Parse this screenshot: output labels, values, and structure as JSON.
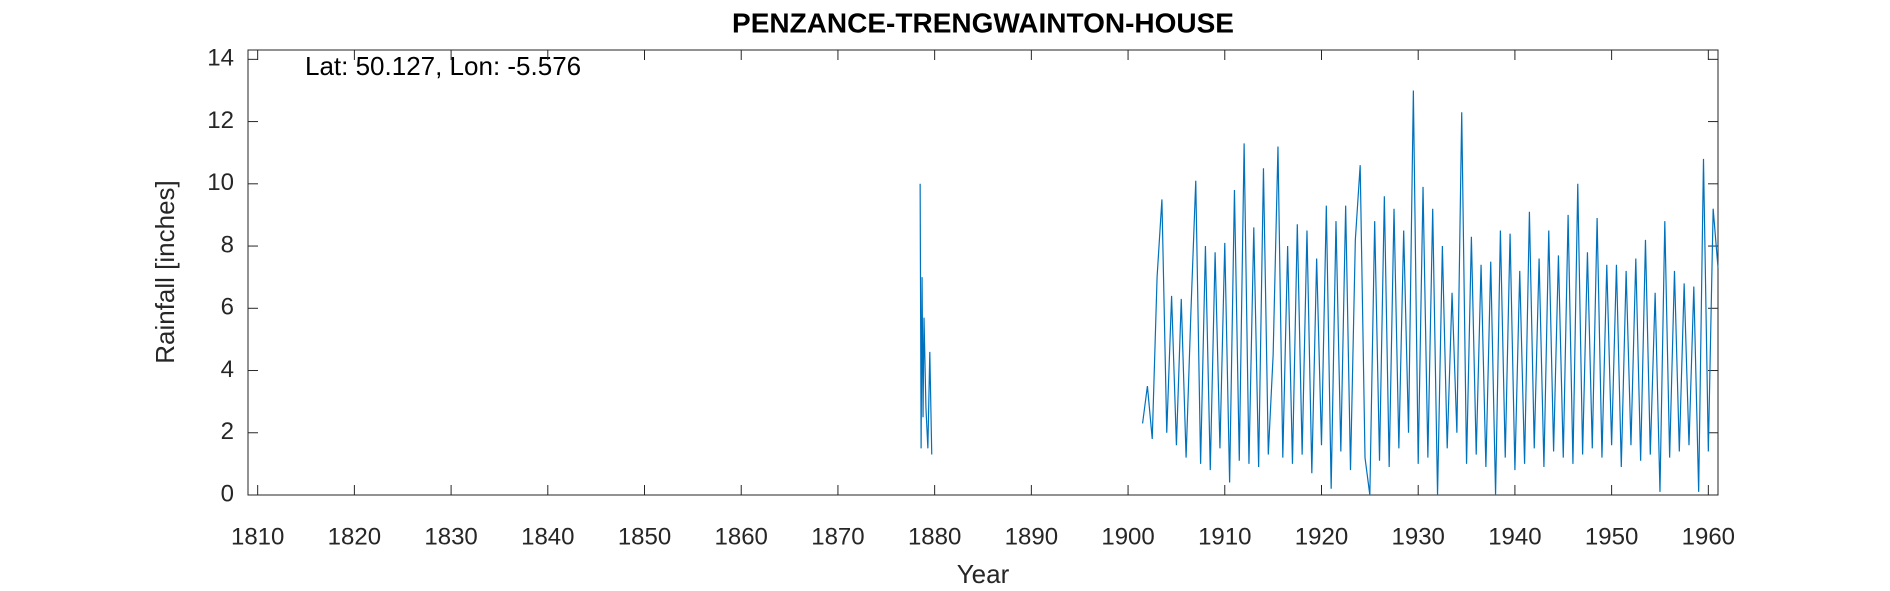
{
  "chart_data": {
    "type": "line",
    "title": "PENZANCE-TRENGWAINTON-HOUSE",
    "annotation": "Lat: 50.127, Lon: -5.576",
    "x_label": "Year",
    "y_label": "Rainfall [inches]",
    "xlim": [
      1809,
      1961
    ],
    "ylim": [
      0,
      14.3
    ],
    "xticks": [
      1810,
      1820,
      1830,
      1840,
      1850,
      1860,
      1870,
      1880,
      1890,
      1900,
      1910,
      1920,
      1930,
      1940,
      1950,
      1960
    ],
    "yticks": [
      0,
      2,
      4,
      6,
      8,
      10,
      12,
      14
    ],
    "x": [
      1878.5,
      1878.6,
      1878.7,
      1878.8,
      1878.9,
      1879.1,
      1879.3,
      1879.5,
      1879.7,
      1890,
      1901.5,
      1902,
      1902.5,
      1903,
      1903.5,
      1904,
      1904.5,
      1905,
      1905.5,
      1906,
      1906.5,
      1907,
      1907.5,
      1908,
      1908.5,
      1909,
      1909.5,
      1910,
      1910.5,
      1911,
      1911.5,
      1912,
      1912.5,
      1913,
      1913.5,
      1914,
      1914.5,
      1915,
      1915.5,
      1916,
      1916.5,
      1917,
      1917.5,
      1918,
      1918.5,
      1919,
      1919.5,
      1920,
      1920.5,
      1921,
      1921.5,
      1922,
      1922.5,
      1923,
      1923.5,
      1924,
      1924.5,
      1925,
      1925.5,
      1926,
      1926.5,
      1927,
      1927.5,
      1928,
      1928.5,
      1929,
      1929.5,
      1930,
      1930.5,
      1931,
      1931.5,
      1932,
      1932.5,
      1933,
      1933.5,
      1934,
      1934.5,
      1935,
      1935.5,
      1936,
      1936.5,
      1937,
      1937.5,
      1938,
      1938.5,
      1939,
      1939.5,
      1940,
      1940.5,
      1941,
      1941.5,
      1942,
      1942.5,
      1943,
      1943.5,
      1944,
      1944.5,
      1945,
      1945.5,
      1946,
      1946.5,
      1947,
      1947.5,
      1948,
      1948.5,
      1949,
      1949.5,
      1950,
      1950.5,
      1951,
      1951.5,
      1952,
      1952.5,
      1953,
      1953.5,
      1954,
      1954.5,
      1955,
      1955.5,
      1956,
      1956.5,
      1957,
      1957.5,
      1958,
      1958.5,
      1959,
      1959.5,
      1960,
      1960.5,
      1961
    ],
    "series": [
      {
        "color": "#0072bd",
        "values": [
          10,
          1.5,
          7,
          2.5,
          5.7,
          2.8,
          1.5,
          4.6,
          1.3,
          null,
          2.3,
          3.5,
          1.8,
          7,
          9.5,
          2,
          6.4,
          1.6,
          6.3,
          1.2,
          5.9,
          10.1,
          1,
          8,
          0.8,
          7.8,
          1.5,
          8.1,
          0.4,
          9.8,
          1.1,
          11.3,
          1,
          8.6,
          0.9,
          10.5,
          1.3,
          4.5,
          11.2,
          1.2,
          8,
          1,
          8.7,
          1.3,
          8.5,
          0.7,
          7.6,
          1.6,
          9.3,
          0.2,
          8.8,
          1.4,
          9.3,
          0.8,
          8.2,
          10.6,
          1.2,
          0,
          8.8,
          1.1,
          9.6,
          0.9,
          9.2,
          1.5,
          8.5,
          2,
          13,
          1,
          9.9,
          1.2,
          9.2,
          0,
          8,
          1.5,
          6.5,
          2,
          12.3,
          1,
          8.3,
          1.3,
          7.4,
          0.9,
          7.5,
          0,
          8.5,
          1.2,
          8.4,
          0.8,
          7.2,
          1,
          9.1,
          1.5,
          7.6,
          0.9,
          8.5,
          1.4,
          7.7,
          1.2,
          9,
          1,
          10,
          1.3,
          7.8,
          1.5,
          8.9,
          1.2,
          7.4,
          1.6,
          7.4,
          0.9,
          7.2,
          1.6,
          7.6,
          1.1,
          8.2,
          1.3,
          6.5,
          0.1,
          8.8,
          1.2,
          7.2,
          1.4,
          6.8,
          1.6,
          6.7,
          0.1,
          10.8,
          1.4,
          9.2,
          7.3
        ]
      }
    ]
  }
}
